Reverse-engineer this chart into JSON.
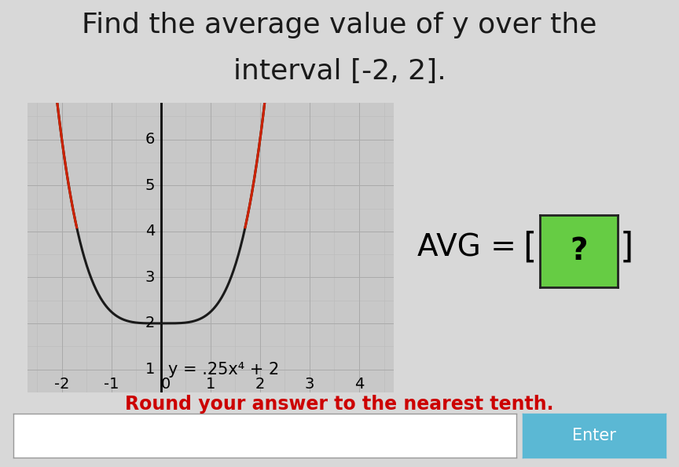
{
  "title_line1": "Find the average value of y over the",
  "title_line2": "interval [-2, 2].",
  "equation_label": "y = .25x⁴ + 2",
  "avg_text": "AVG = ",
  "avg_bracket_q": "[ ? ]",
  "round_label": "Round your answer to the nearest tenth.",
  "enter_label": "Enter",
  "bg_color": "#d8d8d8",
  "plot_bg": "#c8c8c8",
  "curve_color": "#1a1a1a",
  "highlight_color": "#cc2200",
  "enter_bg": "#5bb8d4",
  "avg_box_bg": "#66cc44",
  "grid_color": "#aaaaaa",
  "grid_minor_color": "#bbbbbb",
  "title_color": "#1a1a1a",
  "round_color": "#cc0000",
  "enter_text_color": "#ffffff",
  "xlim": [
    -2.7,
    4.7
  ],
  "ylim": [
    0.5,
    6.8
  ],
  "xticks": [
    -2,
    -1,
    1,
    2,
    3,
    4
  ],
  "yticks": [
    1,
    2,
    3,
    4,
    5,
    6
  ],
  "title_fontsize": 26,
  "eq_fontsize": 15,
  "avg_fontsize": 28,
  "round_fontsize": 17,
  "tick_fontsize": 14
}
